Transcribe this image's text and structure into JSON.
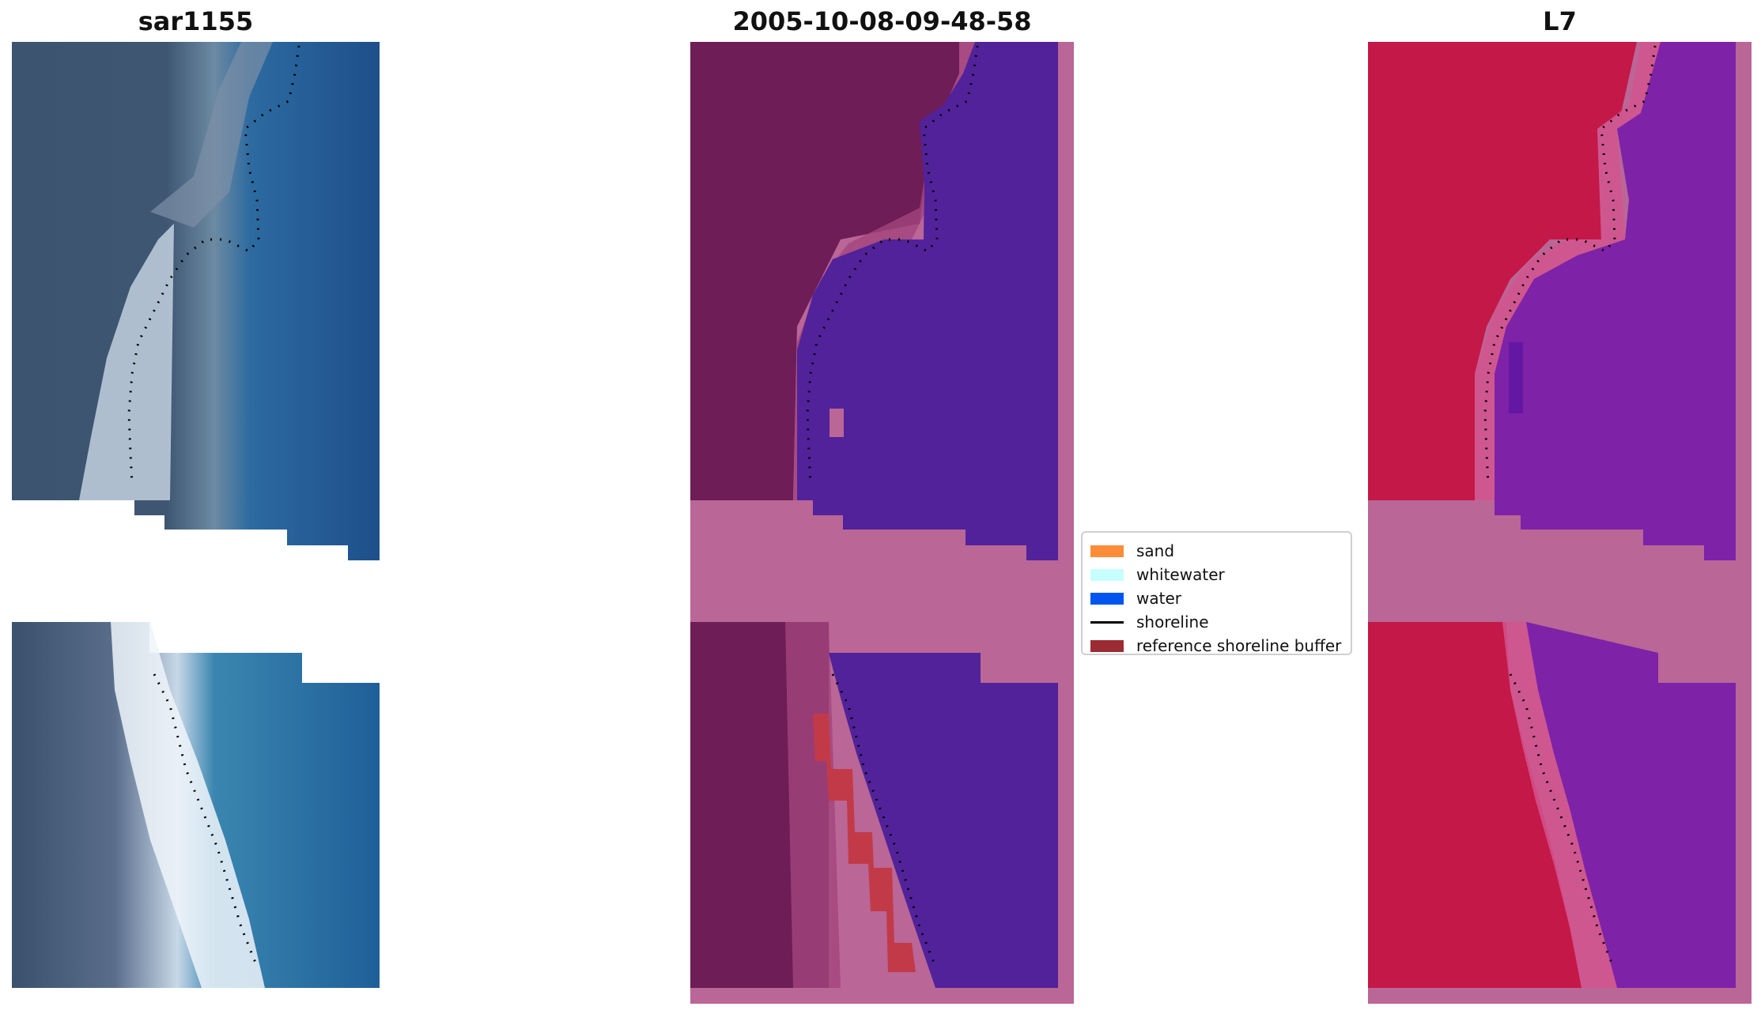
{
  "panels": [
    {
      "title": "sar1155"
    },
    {
      "title": "2005-10-08-09-48-58"
    },
    {
      "title": "L7"
    }
  ],
  "legend": {
    "items": [
      {
        "label": "sand",
        "color": "#ff8c3a",
        "kind": "patch"
      },
      {
        "label": "whitewater",
        "color": "#c8ffff",
        "kind": "patch"
      },
      {
        "label": "water",
        "color": "#0055ee",
        "kind": "patch"
      },
      {
        "label": "shoreline",
        "color": "#000000",
        "kind": "line"
      },
      {
        "label": "reference shoreline buffer",
        "color": "#9b2c33",
        "kind": "patch"
      }
    ]
  },
  "colors": {
    "rgb_land": "#3c5470",
    "rgb_sand": "#e4ecf4",
    "rgb_water": "#1f5a96",
    "class_land": "#6e1d56",
    "class_water": "#52229a",
    "class_nodata": "#ba6696",
    "class_buffer": "#c23a48",
    "mndwi_land": "#c41848",
    "mndwi_water": "#7e22a8",
    "mndwi_nodata": "#ba6696"
  }
}
